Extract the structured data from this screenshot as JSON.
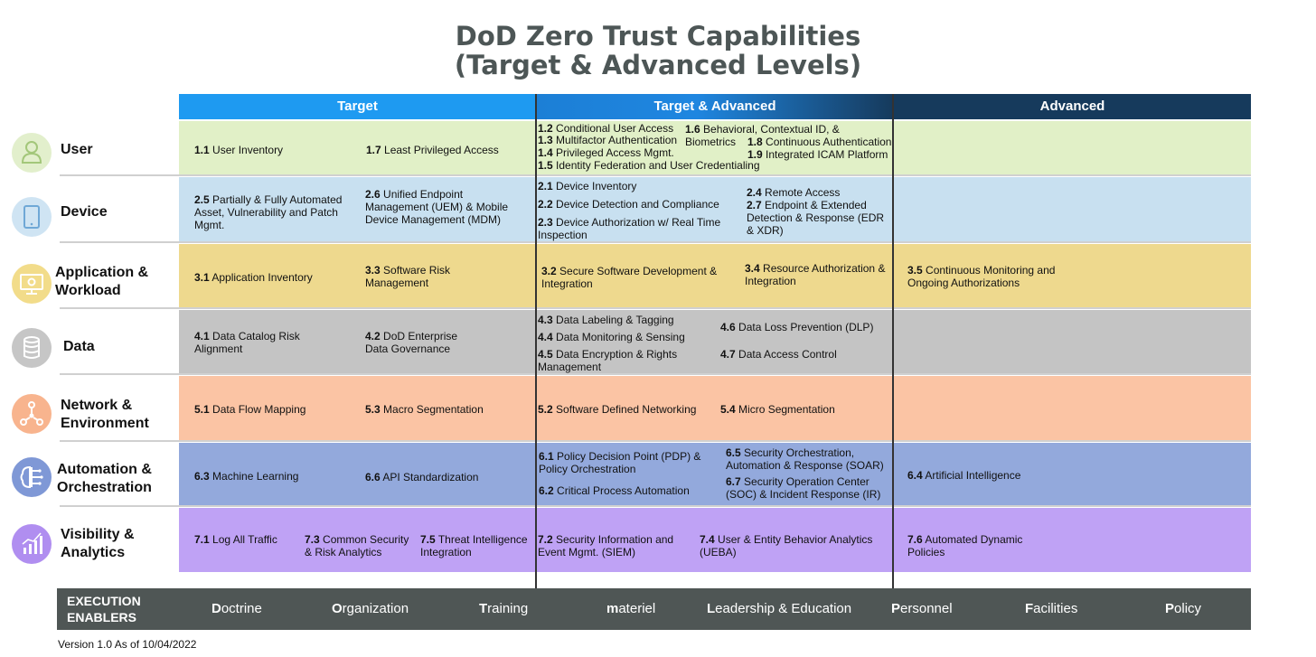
{
  "title": {
    "line1": "DoD Zero Trust Capabilities",
    "line2": "(Target & Advanced Levels)"
  },
  "columns": {
    "target": "Target",
    "target_advanced": "Target & Advanced",
    "advanced": "Advanced"
  },
  "pillars": {
    "user": "User",
    "device": "Device",
    "application": "Application & Workload",
    "data": "Data",
    "network": "Network & Environment",
    "automation": "Automation & Orchestration",
    "visibility": "Visibility & Analytics"
  },
  "colors": {
    "target_header": "#1e9af1",
    "advanced_header": "#163a5c",
    "user_row": "#e1f0c7",
    "device_row": "#c8e0f0",
    "application_row": "#eed98e",
    "data_row": "#c4c4c4",
    "network_row": "#fbc4a4",
    "automation_row": "#93a9dc",
    "visibility_row": "#bfa2f5",
    "enablers_bar": "#4f5655"
  },
  "icons": {
    "user": "user-icon",
    "device": "tablet-icon",
    "application": "monitor-gear-icon",
    "data": "database-icon",
    "network": "network-nodes-icon",
    "automation": "brain-circuit-icon",
    "visibility": "bar-chart-icon"
  },
  "caps": {
    "c1_1": {
      "num": "1.1",
      "text": "User Inventory"
    },
    "c1_7": {
      "num": "1.7",
      "text": "Least Privileged Access"
    },
    "c1_2": {
      "num": "1.2",
      "text": "Conditional User Access"
    },
    "c1_6": {
      "num": "1.6",
      "text": "Behavioral, Contextual ID, & Biometrics"
    },
    "c1_3": {
      "num": "1.3",
      "text": "Multifactor Authentication"
    },
    "c1_8": {
      "num": "1.8",
      "text": "Continuous Authentication"
    },
    "c1_4": {
      "num": "1.4",
      "text": "Privileged Access Mgmt."
    },
    "c1_9": {
      "num": "1.9",
      "text": "Integrated ICAM Platform"
    },
    "c1_5": {
      "num": "1.5",
      "text": "Identity Federation and User Credentialing"
    },
    "c2_5": {
      "num": "2.5",
      "text": "Partially & Fully Automated Asset, Vulnerability and Patch Mgmt."
    },
    "c2_6": {
      "num": "2.6",
      "text": "Unified Endpoint Management (UEM) & Mobile Device Management (MDM)"
    },
    "c2_1": {
      "num": "2.1",
      "text": "Device Inventory"
    },
    "c2_2": {
      "num": "2.2",
      "text": "Device Detection and Compliance"
    },
    "c2_3": {
      "num": "2.3",
      "text": "Device Authorization w/ Real Time Inspection"
    },
    "c2_4": {
      "num": "2.4",
      "text": "Remote Access"
    },
    "c2_7": {
      "num": "2.7",
      "text": "Endpoint & Extended Detection & Response (EDR & XDR)"
    },
    "c3_1": {
      "num": "3.1",
      "text": "Application Inventory"
    },
    "c3_3": {
      "num": "3.3",
      "text": "Software Risk Management"
    },
    "c3_2": {
      "num": "3.2",
      "text": "Secure Software Development & Integration"
    },
    "c3_4": {
      "num": "3.4",
      "text": "Resource Authorization & Integration"
    },
    "c3_5": {
      "num": "3.5",
      "text": "Continuous Monitoring and Ongoing Authorizations"
    },
    "c4_1": {
      "num": "4.1",
      "text": "Data Catalog Risk Alignment"
    },
    "c4_2": {
      "num": "4.2",
      "text": "DoD Enterprise Data Governance"
    },
    "c4_3": {
      "num": "4.3",
      "text": "Data Labeling & Tagging"
    },
    "c4_4": {
      "num": "4.4",
      "text": "Data Monitoring & Sensing"
    },
    "c4_5": {
      "num": "4.5",
      "text": "Data Encryption & Rights Management"
    },
    "c4_6": {
      "num": "4.6",
      "text": "Data Loss Prevention (DLP)"
    },
    "c4_7": {
      "num": "4.7",
      "text": "Data Access Control"
    },
    "c5_1": {
      "num": "5.1",
      "text": "Data Flow Mapping"
    },
    "c5_3": {
      "num": "5.3",
      "text": "Macro Segmentation"
    },
    "c5_2": {
      "num": "5.2",
      "text": "Software Defined Networking"
    },
    "c5_4": {
      "num": "5.4",
      "text": "Micro Segmentation"
    },
    "c6_3": {
      "num": "6.3",
      "text": "Machine Learning"
    },
    "c6_6": {
      "num": "6.6",
      "text": "API Standardization"
    },
    "c6_1": {
      "num": "6.1",
      "text": "Policy Decision Point (PDP) & Policy Orchestration"
    },
    "c6_2": {
      "num": "6.2",
      "text": "Critical Process Automation"
    },
    "c6_5": {
      "num": "6.5",
      "text": "Security Orchestration, Automation & Response (SOAR)"
    },
    "c6_7": {
      "num": "6.7",
      "text": "Security Operation Center (SOC) & Incident Response (IR)"
    },
    "c6_4": {
      "num": "6.4",
      "text": "Artificial Intelligence"
    },
    "c7_1": {
      "num": "7.1",
      "text": "Log All Traffic"
    },
    "c7_3": {
      "num": "7.3",
      "text": "Common Security & Risk Analytics"
    },
    "c7_5": {
      "num": "7.5",
      "text": "Threat Intelligence Integration"
    },
    "c7_2": {
      "num": "7.2",
      "text": "Security Information and Event Mgmt. (SIEM)"
    },
    "c7_4": {
      "num": "7.4",
      "text": "User & Entity Behavior Analytics (UEBA)"
    },
    "c7_6": {
      "num": "7.6",
      "text": "Automated Dynamic Policies"
    }
  },
  "enablers": {
    "title_line1": "EXECUTION",
    "title_line2": "ENABLERS",
    "doctrine": {
      "initial": "D",
      "rest": "octrine"
    },
    "organization": {
      "initial": "O",
      "rest": "rganization"
    },
    "training": {
      "initial": "T",
      "rest": "raining"
    },
    "materiel": {
      "initial": "m",
      "rest": "ateriel"
    },
    "leadership": {
      "initial": "L",
      "rest": "eadership & Education"
    },
    "personnel": {
      "initial": "P",
      "rest": "ersonnel"
    },
    "facilities": {
      "initial": "F",
      "rest": "acilities"
    },
    "policy": {
      "initial": "P",
      "rest": "olicy"
    }
  },
  "version": "Version 1.0 As of 10/04/2022"
}
